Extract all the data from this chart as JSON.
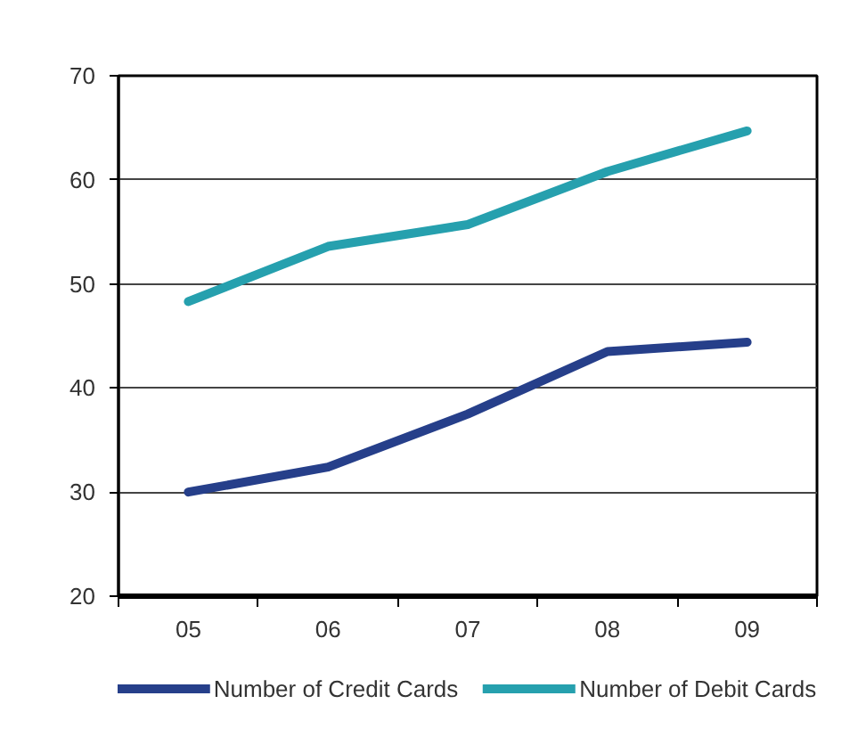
{
  "chart_data": {
    "type": "line",
    "categories": [
      "05",
      "06",
      "07",
      "08",
      "09"
    ],
    "series": [
      {
        "name": "Number of Credit Cards",
        "color": "#263f8a",
        "values": [
          30.0,
          32.4,
          37.5,
          43.5,
          44.4
        ]
      },
      {
        "name": "Number of Debit Cards",
        "color": "#26a0ae",
        "values": [
          48.3,
          53.6,
          55.7,
          60.8,
          64.7
        ]
      }
    ],
    "ylim": [
      20,
      70
    ],
    "yticks": [
      20,
      30,
      40,
      50,
      60,
      70
    ],
    "grid": "y",
    "legend": "bottom",
    "marker": "none",
    "line_style": "solid"
  }
}
